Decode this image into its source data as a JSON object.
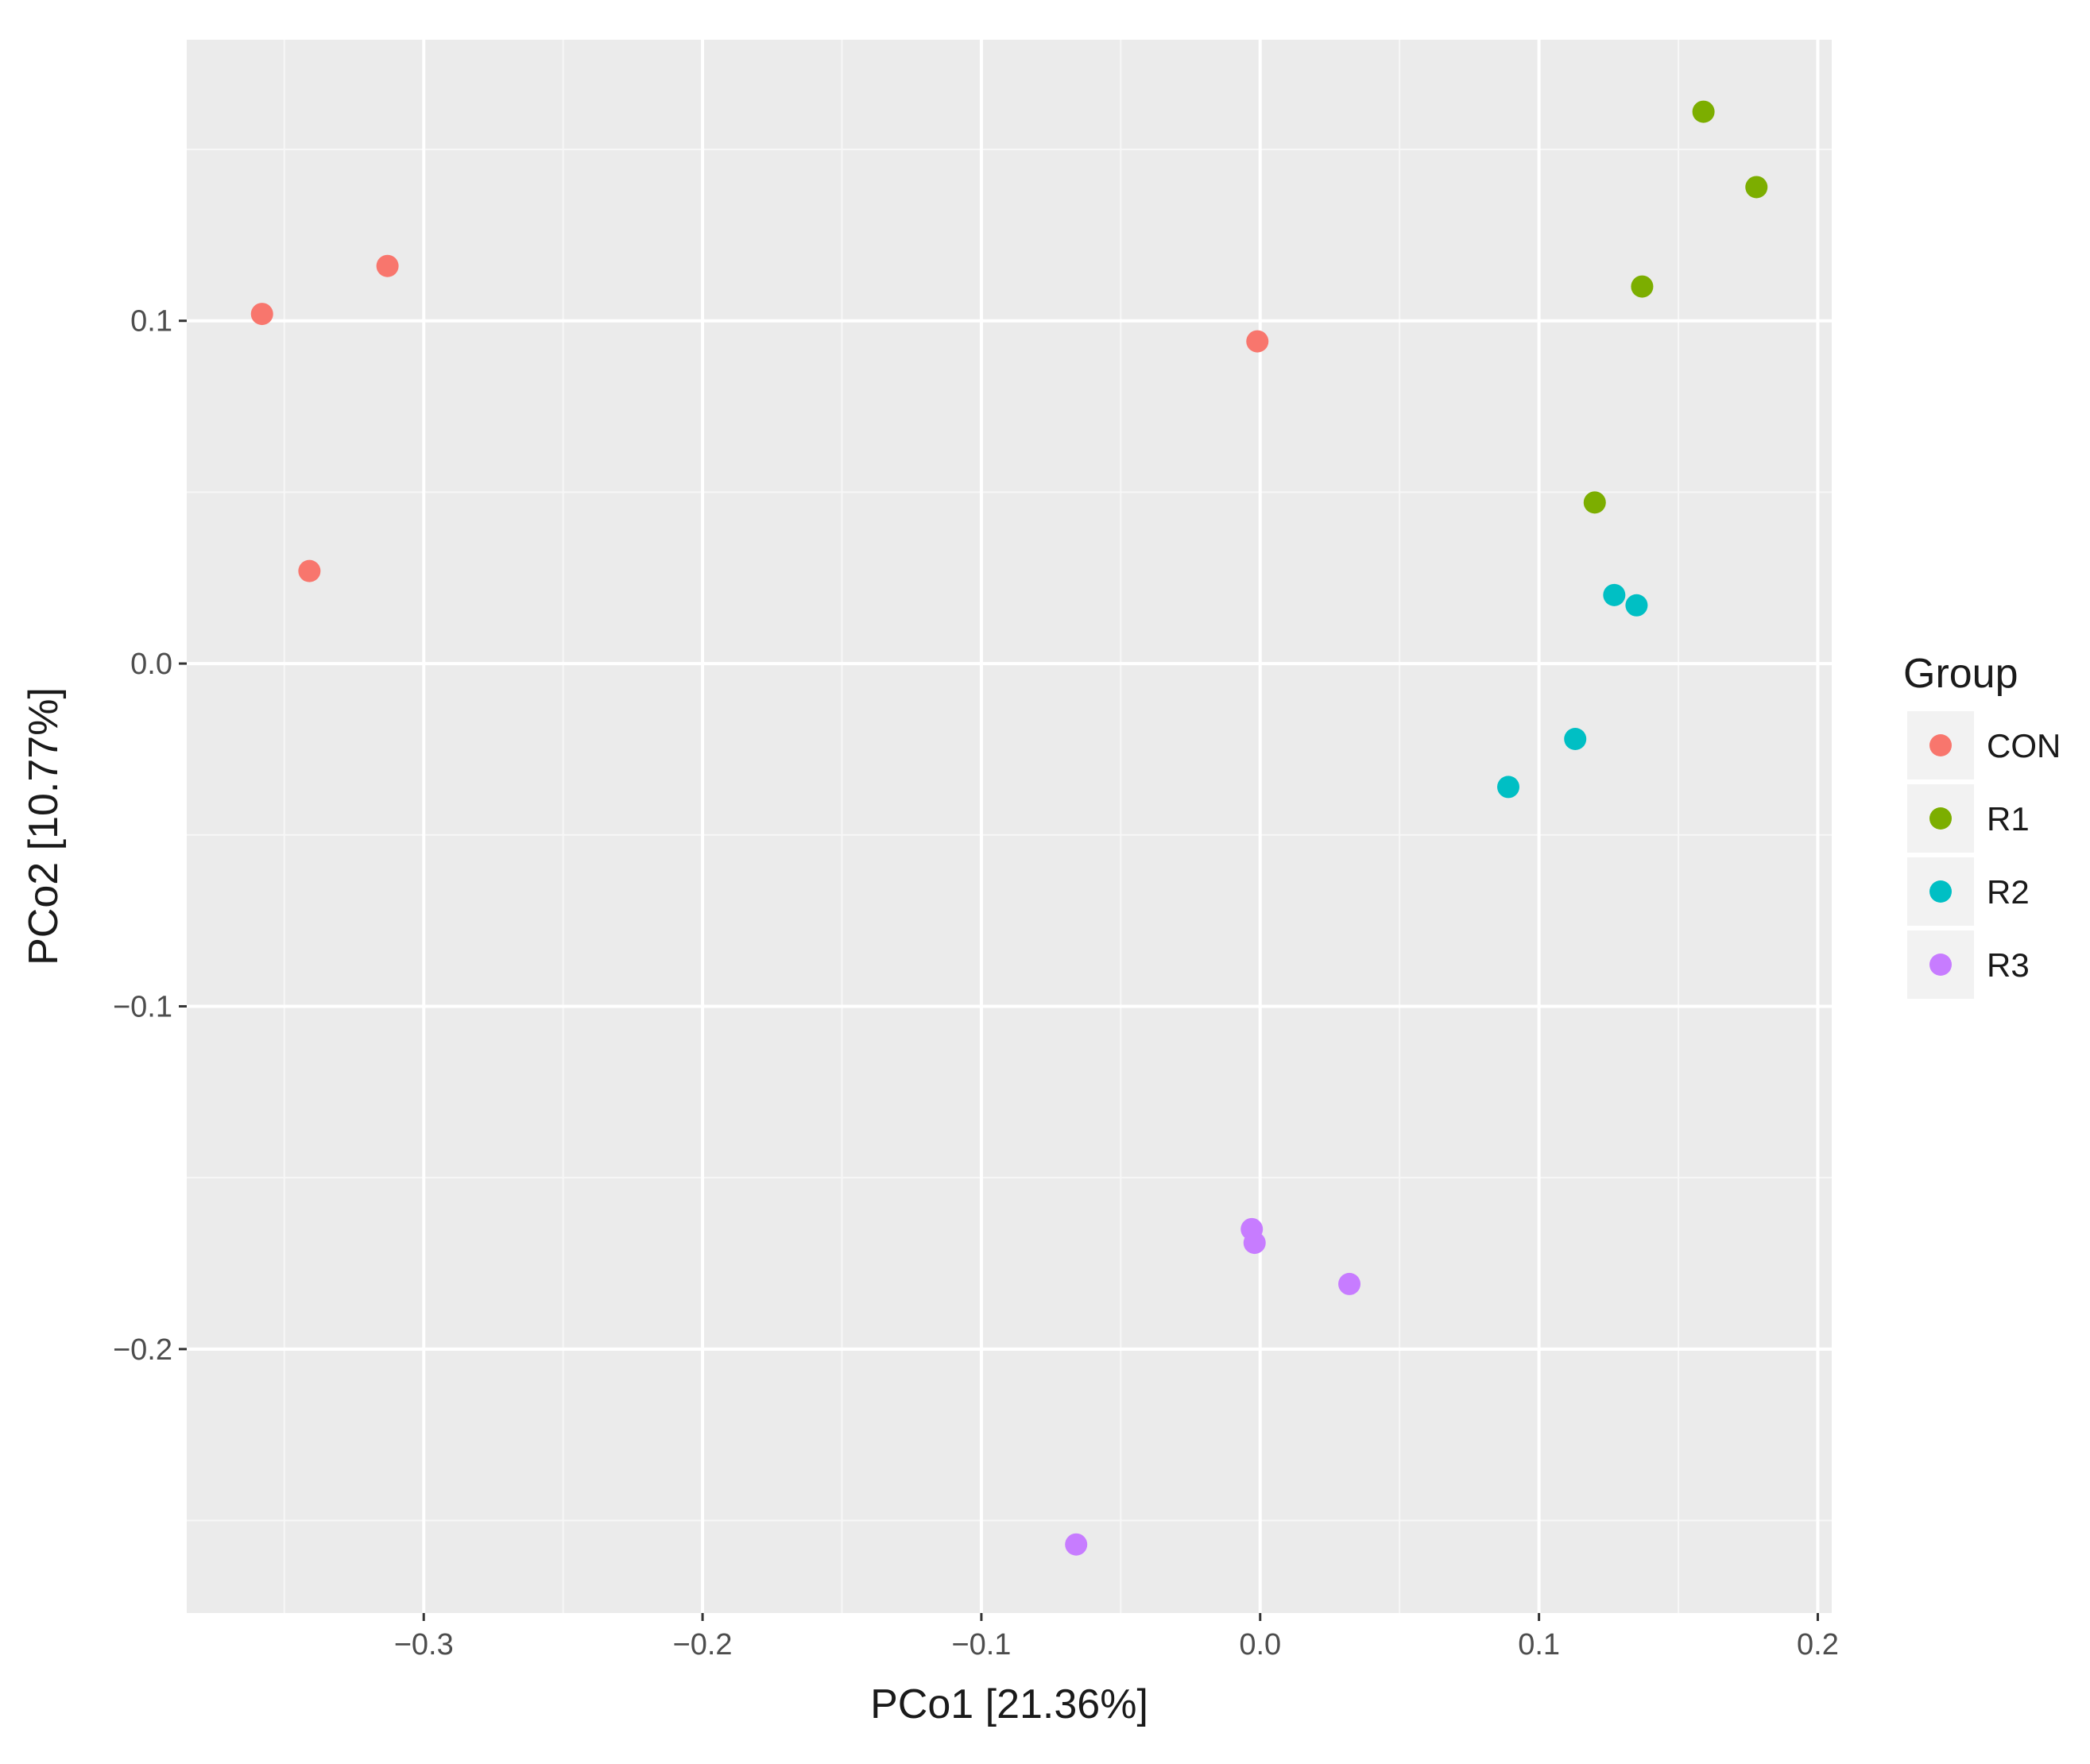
{
  "chart_data": {
    "type": "scatter",
    "title": "",
    "xlabel": "PCo1 [21.36%]",
    "ylabel": "PCo2 [10.77%]",
    "xlim": [
      -0.385,
      0.205
    ],
    "ylim": [
      -0.277,
      0.182
    ],
    "xticks": [
      -0.3,
      -0.2,
      -0.1,
      0.0,
      0.1,
      0.2
    ],
    "xtick_labels": [
      "−0.3",
      "−0.2",
      "−0.1",
      "0.0",
      "0.1",
      "0.2"
    ],
    "yticks": [
      -0.2,
      -0.1,
      0.0,
      0.1
    ],
    "ytick_labels": [
      "−0.2",
      "−0.1",
      "0.0",
      "0.1"
    ],
    "grid": true,
    "legend": {
      "title": "Group",
      "position": "right"
    },
    "series": [
      {
        "name": "CON",
        "color": "#F8766D",
        "points": [
          [
            -0.358,
            0.102
          ],
          [
            -0.313,
            0.116
          ],
          [
            -0.341,
            0.027
          ],
          [
            -0.001,
            0.094
          ]
        ]
      },
      {
        "name": "R1",
        "color": "#7CAE00",
        "points": [
          [
            0.159,
            0.161
          ],
          [
            0.178,
            0.139
          ],
          [
            0.137,
            0.11
          ],
          [
            0.12,
            0.047
          ]
        ]
      },
      {
        "name": "R2",
        "color": "#00BFC4",
        "points": [
          [
            0.127,
            0.02
          ],
          [
            0.135,
            0.017
          ],
          [
            0.113,
            -0.022
          ],
          [
            0.089,
            -0.036
          ]
        ]
      },
      {
        "name": "R3",
        "color": "#C77CFF",
        "points": [
          [
            -0.003,
            -0.165
          ],
          [
            -0.002,
            -0.169
          ],
          [
            0.032,
            -0.181
          ],
          [
            -0.066,
            -0.257
          ]
        ]
      }
    ]
  }
}
